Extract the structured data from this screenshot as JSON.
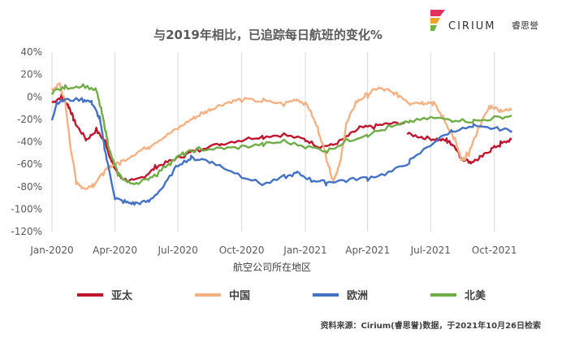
{
  "brand": {
    "name": "CIRIUM",
    "name_cn": "睿思誉"
  },
  "chart_data": {
    "type": "line",
    "title": "与2019年相比，已追踪每日航班的变化%",
    "xlabel": "航空公司所在地区",
    "ylabel": "",
    "x_ticks": [
      "Jan-2020",
      "Apr-2020",
      "Jul-2020",
      "Oct-2020",
      "Jan-2021",
      "Apr-2021",
      "Jul-2021",
      "Oct-2021"
    ],
    "y_ticks": [
      "40%",
      "20%",
      "0%",
      "-20%",
      "-40%",
      "-60%",
      "-80%",
      "-100%",
      "-120%"
    ],
    "ylim": [
      -120,
      40
    ],
    "xlim": [
      "2020-01-01",
      "2021-10-26"
    ],
    "grid": "vertical",
    "legend_position": "bottom",
    "series": [
      {
        "name": "亚太",
        "color": "#c0152f",
        "points": [
          [
            "2020-01-01",
            -5
          ],
          [
            "2020-01-15",
            0
          ],
          [
            "2020-01-25",
            -8
          ],
          [
            "2020-02-05",
            -25
          ],
          [
            "2020-02-20",
            -38
          ],
          [
            "2020-03-05",
            -30
          ],
          [
            "2020-03-18",
            -40
          ],
          [
            "2020-03-28",
            -60
          ],
          [
            "2020-04-10",
            -72
          ],
          [
            "2020-04-25",
            -76
          ],
          [
            "2020-05-15",
            -70
          ],
          [
            "2020-06-01",
            -62
          ],
          [
            "2020-06-20",
            -57
          ],
          [
            "2020-07-10",
            -52
          ],
          [
            "2020-08-01",
            -46
          ],
          [
            "2020-09-01",
            -42
          ],
          [
            "2020-10-01",
            -38
          ],
          [
            "2020-11-01",
            -35
          ],
          [
            "2020-12-01",
            -34
          ],
          [
            "2021-01-01",
            -38
          ],
          [
            "2021-01-20",
            -44
          ],
          [
            "2021-02-10",
            -43
          ],
          [
            "2021-03-01",
            -36
          ],
          [
            "2021-03-20",
            -28
          ],
          [
            "2021-04-10",
            -26
          ],
          [
            "2021-05-01",
            -24
          ],
          [
            "2021-05-25",
            -23
          ]
        ]
      },
      {
        "name": "亚太",
        "color": "#c0152f",
        "points": [
          [
            "2021-05-28",
            -33
          ],
          [
            "2021-06-20",
            -36
          ],
          [
            "2021-07-10",
            -38
          ],
          [
            "2021-07-25",
            -39
          ],
          [
            "2021-08-05",
            -44
          ],
          [
            "2021-08-15",
            -55
          ],
          [
            "2021-08-28",
            -58
          ],
          [
            "2021-09-10",
            -55
          ],
          [
            "2021-09-25",
            -47
          ],
          [
            "2021-10-10",
            -42
          ],
          [
            "2021-10-26",
            -38
          ]
        ]
      },
      {
        "name": "中国",
        "color": "#f4b183",
        "points": [
          [
            "2020-01-01",
            5
          ],
          [
            "2020-01-12",
            12
          ],
          [
            "2020-01-20",
            -5
          ],
          [
            "2020-01-28",
            -45
          ],
          [
            "2020-02-05",
            -75
          ],
          [
            "2020-02-15",
            -82
          ],
          [
            "2020-03-01",
            -78
          ],
          [
            "2020-03-15",
            -68
          ],
          [
            "2020-03-25",
            -62
          ],
          [
            "2020-04-10",
            -58
          ],
          [
            "2020-05-01",
            -50
          ],
          [
            "2020-05-20",
            -44
          ],
          [
            "2020-06-10",
            -36
          ],
          [
            "2020-07-01",
            -28
          ],
          [
            "2020-07-20",
            -20
          ],
          [
            "2020-08-05",
            -15
          ],
          [
            "2020-08-20",
            -10
          ],
          [
            "2020-09-10",
            -5
          ],
          [
            "2020-10-01",
            -2
          ],
          [
            "2020-11-01",
            -4
          ],
          [
            "2020-12-01",
            -6
          ],
          [
            "2020-12-20",
            -2
          ],
          [
            "2021-01-05",
            -8
          ],
          [
            "2021-01-20",
            -30
          ],
          [
            "2021-02-01",
            -55
          ],
          [
            "2021-02-10",
            -75
          ],
          [
            "2021-02-20",
            -60
          ],
          [
            "2021-03-01",
            -25
          ],
          [
            "2021-03-15",
            -5
          ],
          [
            "2021-04-01",
            2
          ],
          [
            "2021-04-15",
            8
          ],
          [
            "2021-05-01",
            5
          ],
          [
            "2021-05-15",
            2
          ],
          [
            "2021-06-01",
            -5
          ],
          [
            "2021-06-20",
            -5
          ],
          [
            "2021-07-05",
            -5
          ],
          [
            "2021-07-20",
            -20
          ],
          [
            "2021-08-05",
            -38
          ],
          [
            "2021-08-15",
            -58
          ],
          [
            "2021-08-25",
            -50
          ],
          [
            "2021-09-10",
            -25
          ],
          [
            "2021-09-25",
            -8
          ],
          [
            "2021-10-10",
            -12
          ],
          [
            "2021-10-26",
            -12
          ]
        ]
      },
      {
        "name": "欧洲",
        "color": "#4472c4",
        "points": [
          [
            "2020-01-01",
            -20
          ],
          [
            "2020-01-08",
            -5
          ],
          [
            "2020-01-20",
            -3
          ],
          [
            "2020-02-15",
            -2
          ],
          [
            "2020-02-28",
            -5
          ],
          [
            "2020-03-10",
            -20
          ],
          [
            "2020-03-20",
            -55
          ],
          [
            "2020-04-01",
            -90
          ],
          [
            "2020-04-15",
            -94
          ],
          [
            "2020-05-01",
            -95
          ],
          [
            "2020-05-20",
            -93
          ],
          [
            "2020-06-10",
            -80
          ],
          [
            "2020-07-01",
            -60
          ],
          [
            "2020-07-20",
            -55
          ],
          [
            "2020-08-10",
            -56
          ],
          [
            "2020-09-01",
            -62
          ],
          [
            "2020-10-01",
            -70
          ],
          [
            "2020-11-01",
            -78
          ],
          [
            "2020-12-01",
            -72
          ],
          [
            "2020-12-20",
            -68
          ],
          [
            "2021-01-10",
            -74
          ],
          [
            "2021-02-01",
            -76
          ],
          [
            "2021-03-01",
            -74
          ],
          [
            "2021-04-01",
            -72
          ],
          [
            "2021-05-01",
            -68
          ],
          [
            "2021-06-01",
            -58
          ],
          [
            "2021-07-01",
            -42
          ],
          [
            "2021-08-01",
            -30
          ],
          [
            "2021-09-01",
            -27
          ],
          [
            "2021-10-01",
            -28
          ],
          [
            "2021-10-26",
            -30
          ]
        ]
      },
      {
        "name": "北美",
        "color": "#70ad47",
        "points": [
          [
            "2020-01-01",
            5
          ],
          [
            "2020-01-20",
            8
          ],
          [
            "2020-02-15",
            10
          ],
          [
            "2020-03-05",
            6
          ],
          [
            "2020-03-15",
            -20
          ],
          [
            "2020-03-25",
            -50
          ],
          [
            "2020-04-05",
            -68
          ],
          [
            "2020-04-20",
            -77
          ],
          [
            "2020-05-10",
            -76
          ],
          [
            "2020-06-01",
            -68
          ],
          [
            "2020-06-20",
            -58
          ],
          [
            "2020-07-10",
            -50
          ],
          [
            "2020-08-01",
            -47
          ],
          [
            "2020-09-01",
            -46
          ],
          [
            "2020-10-01",
            -45
          ],
          [
            "2020-11-01",
            -42
          ],
          [
            "2020-12-01",
            -40
          ],
          [
            "2021-01-01",
            -44
          ],
          [
            "2021-02-01",
            -48
          ],
          [
            "2021-03-01",
            -40
          ],
          [
            "2021-04-01",
            -33
          ],
          [
            "2021-05-01",
            -28
          ],
          [
            "2021-06-01",
            -22
          ],
          [
            "2021-07-01",
            -19
          ],
          [
            "2021-08-01",
            -20
          ],
          [
            "2021-09-01",
            -22
          ],
          [
            "2021-10-01",
            -19
          ],
          [
            "2021-10-26",
            -17
          ]
        ]
      }
    ],
    "legend": [
      {
        "name": "亚太",
        "color": "#c0152f"
      },
      {
        "name": "中国",
        "color": "#f4b183"
      },
      {
        "name": "欧洲",
        "color": "#4472c4"
      },
      {
        "name": "北美",
        "color": "#70ad47"
      }
    ],
    "source_note": "资料来源：Cirium(睿思誉)数据，于2021年10月26日检索"
  }
}
